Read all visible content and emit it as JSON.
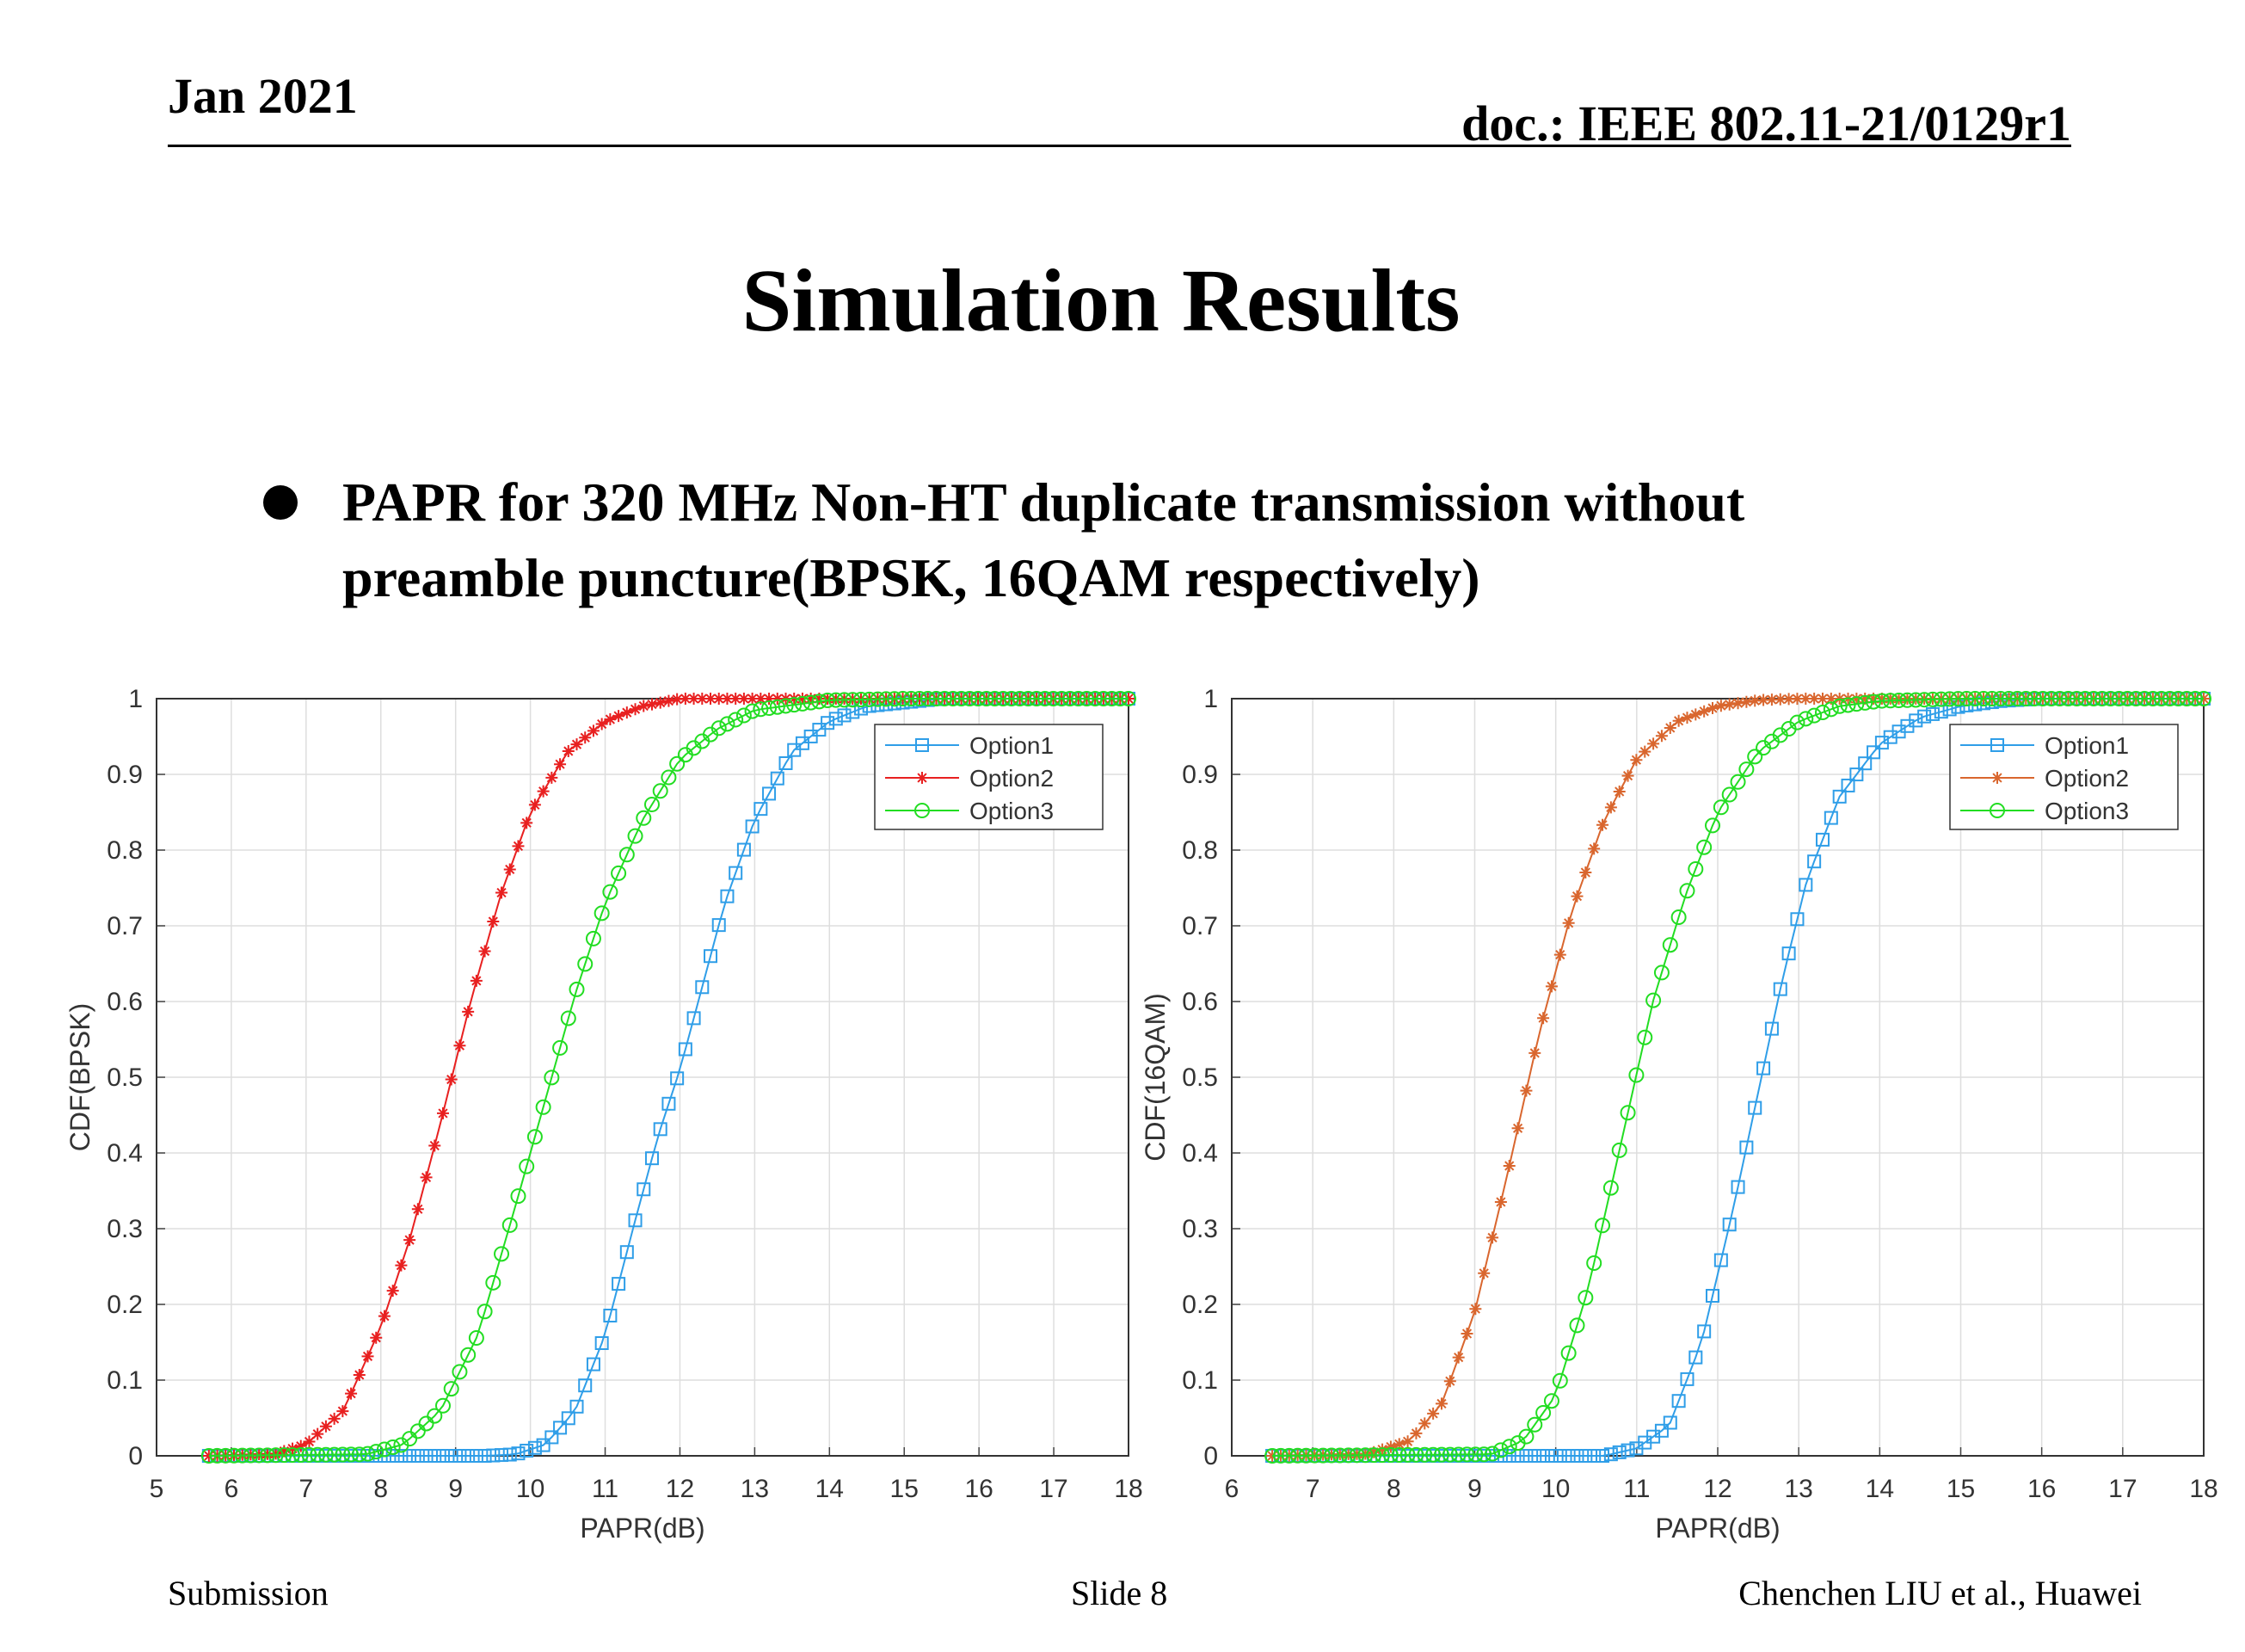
{
  "header": {
    "date": "Jan 2021",
    "doc": "doc.: IEEE 802.11-21/0129r1"
  },
  "title": "Simulation Results",
  "bullet": {
    "line1": "PAPR for 320 MHz Non-HT duplicate transmission without",
    "line2": "preamble puncture(BPSK, 16QAM respectively)"
  },
  "footer": {
    "left": "Submission",
    "center": "Slide 8",
    "right": "Chenchen LIU et al., Huawei"
  },
  "colors": {
    "option1": "#2f9ee8",
    "option2_bpsk": "#e82020",
    "option2_16qam": "#d9662e",
    "option3": "#22dd22"
  },
  "chart_data": [
    {
      "type": "line",
      "xlabel": "PAPR(dB)",
      "ylabel": "CDF(BPSK)",
      "xlim": [
        5,
        18
      ],
      "ylim": [
        0,
        1
      ],
      "xticks": [
        "5",
        "6",
        "7",
        "8",
        "9",
        "10",
        "11",
        "12",
        "13",
        "14",
        "15",
        "16",
        "17",
        "18"
      ],
      "yticks": [
        "0",
        "0.1",
        "0.2",
        "0.3",
        "0.4",
        "0.5",
        "0.6",
        "0.7",
        "0.8",
        "0.9",
        "1"
      ],
      "grid": true,
      "legend_position": "top-right",
      "series": [
        {
          "name": "Option1",
          "marker": "square",
          "color": "#2f9ee8",
          "x": [
            5.7,
            9.4,
            9.8,
            10.2,
            10.6,
            11.0,
            11.4,
            11.7,
            12.0,
            12.3,
            12.6,
            13.0,
            13.5,
            14.0,
            14.5,
            15.5,
            18.0
          ],
          "y": [
            0.0,
            0.0,
            0.002,
            0.015,
            0.06,
            0.16,
            0.31,
            0.42,
            0.51,
            0.62,
            0.73,
            0.84,
            0.93,
            0.97,
            0.99,
            1.0,
            1.0
          ]
        },
        {
          "name": "Option2",
          "marker": "asterisk",
          "color": "#e82020",
          "x": [
            5.7,
            6.6,
            7.0,
            7.5,
            8.0,
            8.4,
            8.8,
            9.2,
            9.6,
            10.0,
            10.5,
            11.0,
            11.5,
            12.0,
            12.5,
            18.0
          ],
          "y": [
            0.0,
            0.003,
            0.015,
            0.06,
            0.17,
            0.29,
            0.44,
            0.6,
            0.74,
            0.85,
            0.93,
            0.97,
            0.99,
            1.0,
            1.0,
            1.0
          ]
        },
        {
          "name": "Option3",
          "marker": "circle",
          "color": "#22dd22",
          "x": [
            5.7,
            7.8,
            8.3,
            8.8,
            9.3,
            9.8,
            10.2,
            10.6,
            11.0,
            11.5,
            12.0,
            12.5,
            13.0,
            14.0,
            15.0,
            18.0
          ],
          "y": [
            0.0,
            0.002,
            0.015,
            0.06,
            0.16,
            0.33,
            0.47,
            0.61,
            0.73,
            0.84,
            0.92,
            0.96,
            0.985,
            0.998,
            1.0,
            1.0
          ]
        }
      ]
    },
    {
      "type": "line",
      "xlabel": "PAPR(dB)",
      "ylabel": "CDF(16QAM)",
      "xlim": [
        6,
        18
      ],
      "ylim": [
        0,
        1
      ],
      "xticks": [
        "6",
        "7",
        "8",
        "9",
        "10",
        "11",
        "12",
        "13",
        "14",
        "15",
        "16",
        "17",
        "18"
      ],
      "yticks": [
        "0",
        "0.1",
        "0.2",
        "0.3",
        "0.4",
        "0.5",
        "0.6",
        "0.7",
        "0.8",
        "0.9",
        "1"
      ],
      "grid": true,
      "legend_position": "top-right",
      "series": [
        {
          "name": "Option1",
          "marker": "square",
          "color": "#2f9ee8",
          "x": [
            6.5,
            10.6,
            11.0,
            11.4,
            11.8,
            12.2,
            12.5,
            12.8,
            13.1,
            13.5,
            14.0,
            14.5,
            15.0,
            15.5,
            16.0,
            18.0
          ],
          "y": [
            0.0,
            0.0,
            0.01,
            0.04,
            0.15,
            0.33,
            0.48,
            0.63,
            0.76,
            0.87,
            0.94,
            0.975,
            0.99,
            0.997,
            1.0,
            1.0
          ]
        },
        {
          "name": "Option2",
          "marker": "asterisk",
          "color": "#d9662e",
          "x": [
            6.5,
            7.7,
            8.2,
            8.6,
            9.0,
            9.4,
            9.8,
            10.2,
            10.6,
            11.0,
            11.5,
            12.0,
            12.5,
            13.0,
            18.0
          ],
          "y": [
            0.0,
            0.003,
            0.02,
            0.07,
            0.19,
            0.37,
            0.56,
            0.72,
            0.84,
            0.92,
            0.97,
            0.99,
            0.998,
            1.0,
            1.0
          ]
        },
        {
          "name": "Option3",
          "marker": "circle",
          "color": "#22dd22",
          "x": [
            6.5,
            9.2,
            9.6,
            10.0,
            10.4,
            10.8,
            11.2,
            11.6,
            12.0,
            12.5,
            13.0,
            13.5,
            14.0,
            15.0,
            18.0
          ],
          "y": [
            0.0,
            0.002,
            0.02,
            0.08,
            0.22,
            0.41,
            0.6,
            0.74,
            0.85,
            0.93,
            0.97,
            0.99,
            0.997,
            1.0,
            1.0
          ]
        }
      ]
    }
  ]
}
